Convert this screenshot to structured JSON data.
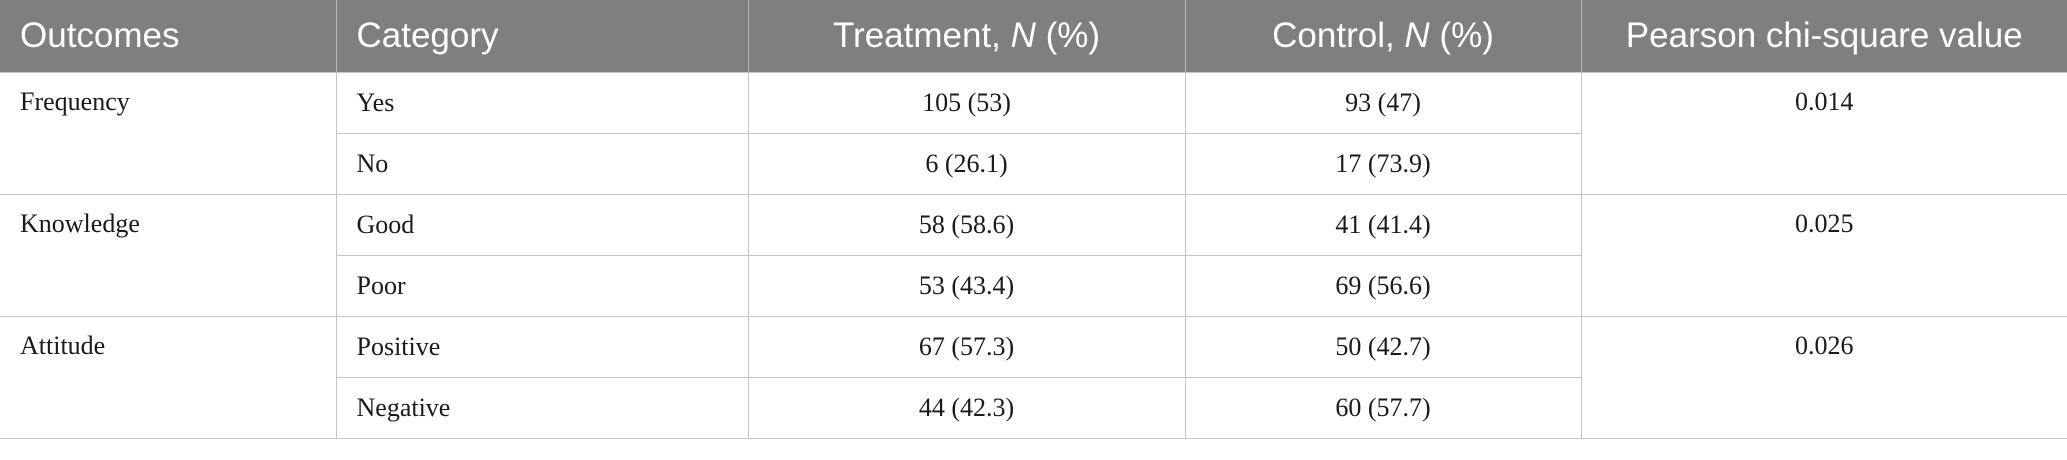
{
  "table": {
    "headers": {
      "outcomes": "Outcomes",
      "category": "Category",
      "treatment_prefix": "Treatment, ",
      "treatment_italic": "N",
      "treatment_suffix": " (%)",
      "control_prefix": "Control, ",
      "control_italic": "N",
      "control_suffix": " (%)",
      "pearson": "Pearson chi-square value"
    },
    "groups": [
      {
        "outcome": "Frequency",
        "pvalue": "0.014",
        "rows": [
          {
            "category": "Yes",
            "treatment": "105 (53)",
            "control": "93 (47)"
          },
          {
            "category": "No",
            "treatment": "6 (26.1)",
            "control": "17 (73.9)"
          }
        ]
      },
      {
        "outcome": "Knowledge",
        "pvalue": "0.025",
        "rows": [
          {
            "category": "Good",
            "treatment": "58 (58.6)",
            "control": "41 (41.4)"
          },
          {
            "category": "Poor",
            "treatment": "53 (43.4)",
            "control": "69 (56.6)"
          }
        ]
      },
      {
        "outcome": "Attitude",
        "pvalue": "0.026",
        "rows": [
          {
            "category": "Positive",
            "treatment": "67 (57.3)",
            "control": "50 (42.7)"
          },
          {
            "category": "Negative",
            "treatment": "44 (42.3)",
            "control": "60 (57.7)"
          }
        ]
      }
    ]
  },
  "colors": {
    "header_bg": "#7e7f7e",
    "header_text": "#ffffff",
    "grid_line": "#c4c4c4",
    "body_text": "#1a1a1a"
  }
}
